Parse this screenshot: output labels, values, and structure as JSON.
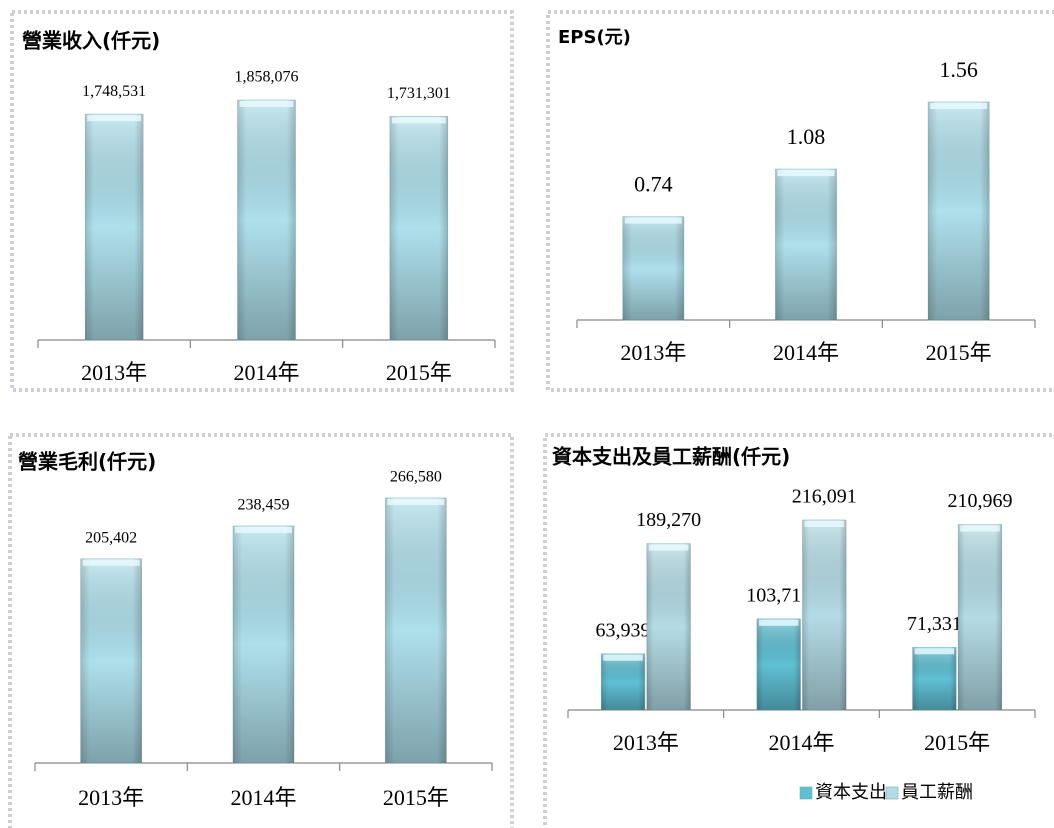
{
  "chart_data": [
    {
      "type": "bar",
      "title": "營業收入(仟元)",
      "categories": [
        "2013年",
        "2014年",
        "2015年"
      ],
      "values": [
        1748531,
        1858076,
        1731301
      ],
      "value_labels": [
        "1,748,531",
        "1,858,076",
        "1,731,301"
      ],
      "color": "#aee0ec"
    },
    {
      "type": "bar",
      "title": "EPS(元)",
      "categories": [
        "2013年",
        "2014年",
        "2015年"
      ],
      "values": [
        0.74,
        1.08,
        1.56
      ],
      "color": "#aee0ec"
    },
    {
      "type": "bar",
      "title": "營業毛利(仟元)",
      "categories": [
        "2013年",
        "2014年",
        "2015年"
      ],
      "values": [
        205402,
        238459,
        266580
      ],
      "value_labels": [
        "205,402",
        "238,459",
        "266,580"
      ],
      "color": "#aee0ec"
    },
    {
      "type": "grouped_bar",
      "title": "資本支出及員工薪酬(仟元)",
      "categories": [
        "2013年",
        "2014年",
        "2015年"
      ],
      "series": [
        {
          "name": "資本支出",
          "color": "#5fc0d4",
          "values": [
            63939,
            103717,
            71331
          ],
          "value_labels": [
            "63,939",
            "103,717",
            "71,331"
          ]
        },
        {
          "name": "員工薪酬",
          "color": "#b4dce6",
          "values": [
            189270,
            216091,
            210969
          ],
          "value_labels": [
            "189,270",
            "216,091",
            "210,969"
          ]
        }
      ],
      "legend": "bottom"
    }
  ]
}
